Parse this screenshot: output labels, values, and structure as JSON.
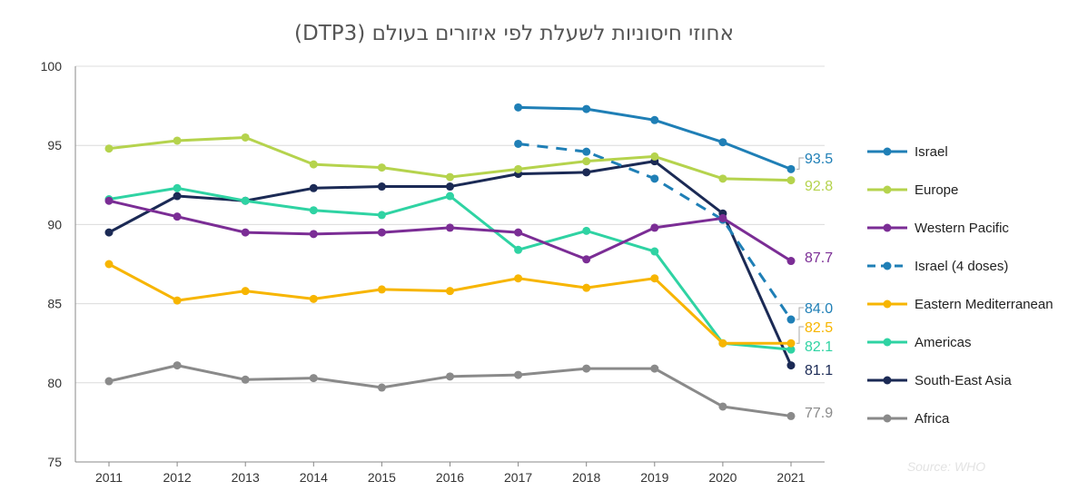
{
  "chart_data": {
    "type": "line",
    "title": "אחוזי חיסוניות לשעלת לפי איזורים בעולם (DTP3)",
    "source": "Source: WHO",
    "categories": [
      "2011",
      "2012",
      "2013",
      "2014",
      "2015",
      "2016",
      "2017",
      "2018",
      "2019",
      "2020",
      "2021"
    ],
    "ylim": [
      75,
      100
    ],
    "yticks": [
      75,
      80,
      85,
      90,
      95,
      100
    ],
    "xlabel": "",
    "ylabel": "",
    "grid": "horizontal",
    "legend_position": "right",
    "series": [
      {
        "name": "Israel",
        "color": "#1f7fb6",
        "dashed": false,
        "values": [
          null,
          null,
          null,
          null,
          null,
          null,
          97.4,
          97.3,
          96.6,
          95.2,
          93.5
        ],
        "end_label": "93.5"
      },
      {
        "name": "Europe",
        "color": "#b5d34d",
        "dashed": false,
        "values": [
          94.8,
          95.3,
          95.5,
          93.8,
          93.6,
          93.0,
          93.5,
          94.0,
          94.3,
          92.9,
          92.8
        ],
        "end_label": "92.8"
      },
      {
        "name": "Western Pacific",
        "color": "#7b2d95",
        "dashed": false,
        "values": [
          91.5,
          90.5,
          89.5,
          89.4,
          89.5,
          89.8,
          89.5,
          87.8,
          89.8,
          90.4,
          87.7
        ],
        "end_label": "87.7"
      },
      {
        "name": "Israel (4 doses)",
        "color": "#1f7fb6",
        "dashed": true,
        "values": [
          null,
          null,
          null,
          null,
          null,
          null,
          95.1,
          94.6,
          92.9,
          90.3,
          84.0
        ],
        "end_label": "84.0"
      },
      {
        "name": "Eastern Mediterranean",
        "color": "#f7b500",
        "dashed": false,
        "values": [
          87.5,
          85.2,
          85.8,
          85.3,
          85.9,
          85.8,
          86.6,
          86.0,
          86.6,
          82.5,
          82.5
        ],
        "end_label": "82.5"
      },
      {
        "name": "Americas",
        "color": "#2fd3a3",
        "dashed": false,
        "values": [
          91.6,
          92.3,
          91.5,
          90.9,
          90.6,
          91.8,
          88.4,
          89.6,
          88.3,
          82.5,
          82.1
        ],
        "end_label": "82.1"
      },
      {
        "name": "South-East Asia",
        "color": "#1b2a55",
        "dashed": false,
        "values": [
          89.5,
          91.8,
          91.5,
          92.3,
          92.4,
          92.4,
          93.2,
          93.3,
          94.0,
          90.7,
          81.1
        ],
        "end_label": "81.1"
      },
      {
        "name": "Africa",
        "color": "#8a8a8a",
        "dashed": false,
        "values": [
          80.1,
          81.1,
          80.2,
          80.3,
          79.7,
          80.4,
          80.5,
          80.9,
          80.9,
          78.5,
          77.9
        ],
        "end_label": "77.9"
      }
    ]
  }
}
